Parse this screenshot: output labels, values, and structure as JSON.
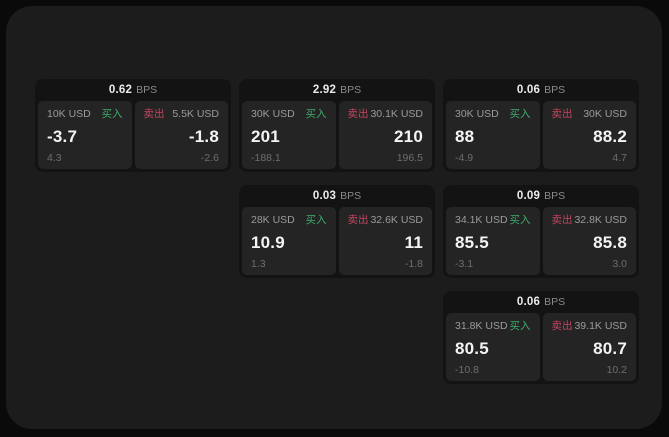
{
  "page": {
    "bps_label": "BPS",
    "buy_label": "买入",
    "sell_label": "卖出"
  },
  "colors": {
    "outer_background": "#0a0a0a",
    "panel_background": "#1c1c1c",
    "card_background": "#131313",
    "subpanel_background": "#242424",
    "buy_accent": "#40ab6d",
    "sell_accent": "#c2455f",
    "value_text": "#f4f4f4",
    "muted_text": "#9b9b9b",
    "sub_text": "#6e6e6e"
  },
  "cards": [
    {
      "bps": "0.62",
      "grid": {
        "row": 1,
        "col": 1
      },
      "buy": {
        "amount": "10K USD",
        "value": "-3.7",
        "change": "4.3"
      },
      "sell": {
        "amount": "5.5K USD",
        "value": "-1.8",
        "change": "-2.6"
      }
    },
    {
      "bps": "2.92",
      "grid": {
        "row": 1,
        "col": 2
      },
      "buy": {
        "amount": "30K USD",
        "value": "201",
        "change": "-188.1"
      },
      "sell": {
        "amount": "30.1K USD",
        "value": "210",
        "change": "196.5"
      }
    },
    {
      "bps": "0.06",
      "grid": {
        "row": 1,
        "col": 3
      },
      "buy": {
        "amount": "30K USD",
        "value": "88",
        "change": "-4.9"
      },
      "sell": {
        "amount": "30K USD",
        "value": "88.2",
        "change": "4.7"
      }
    },
    {
      "bps": "0.03",
      "grid": {
        "row": 2,
        "col": 2
      },
      "buy": {
        "amount": "28K USD",
        "value": "10.9",
        "change": "1.3"
      },
      "sell": {
        "amount": "32.6K USD",
        "value": "11",
        "change": "-1.8"
      }
    },
    {
      "bps": "0.09",
      "grid": {
        "row": 2,
        "col": 3
      },
      "buy": {
        "amount": "34.1K USD",
        "value": "85.5",
        "change": "-3.1"
      },
      "sell": {
        "amount": "32.8K USD",
        "value": "85.8",
        "change": "3.0"
      }
    },
    {
      "bps": "0.06",
      "grid": {
        "row": 3,
        "col": 3
      },
      "buy": {
        "amount": "31.8K USD",
        "value": "80.5",
        "change": "-10.8"
      },
      "sell": {
        "amount": "39.1K USD",
        "value": "80.7",
        "change": "10.2"
      }
    }
  ]
}
